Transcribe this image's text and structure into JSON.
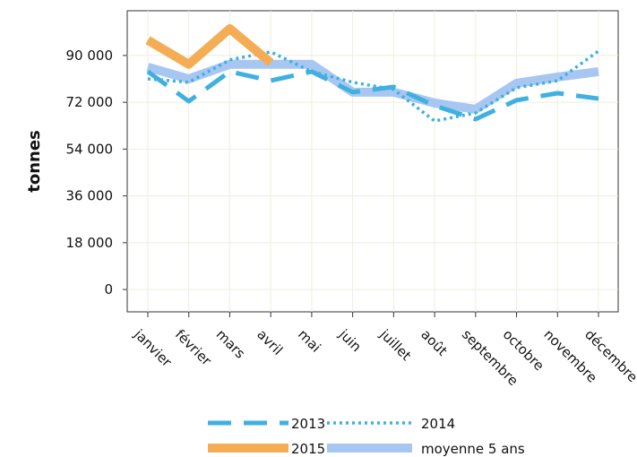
{
  "chart_data": {
    "type": "line",
    "y_label": "tonnes",
    "categories": [
      "janvier",
      "février",
      "mars",
      "avril",
      "mai",
      "juin",
      "juillet",
      "août",
      "septembre",
      "octobre",
      "novembre",
      "décembre"
    ],
    "ylim": [
      -8600,
      107200
    ],
    "yticks": [
      {
        "value": 0,
        "label": "0"
      },
      {
        "value": 18000,
        "label": "18 000"
      },
      {
        "value": 36000,
        "label": "36 000"
      },
      {
        "value": 54000,
        "label": "54 000"
      },
      {
        "value": 72000,
        "label": "72 000"
      },
      {
        "value": 90000,
        "label": "90 000"
      }
    ],
    "grid": true,
    "series": [
      {
        "name": "2013",
        "color": "#3fb0e0",
        "style": "dashed",
        "values": [
          83800,
          72400,
          83800,
          80300,
          83800,
          75900,
          77900,
          70700,
          65500,
          72800,
          75500,
          73400
        ]
      },
      {
        "name": "2014",
        "color": "#3fb0e0",
        "style": "dotted",
        "values": [
          81000,
          79700,
          88300,
          91400,
          83800,
          79700,
          76900,
          64800,
          67900,
          77600,
          80300,
          91700
        ]
      },
      {
        "name": "2015",
        "color": "#f5ad55",
        "style": "thick",
        "values": [
          95900,
          86600,
          100300,
          87200,
          null,
          null,
          null,
          null,
          null,
          null,
          null,
          null
        ]
      },
      {
        "name": "moyenne 5 ans",
        "color": "#a7c7f2",
        "style": "thick",
        "values": [
          85500,
          81000,
          86600,
          86600,
          86600,
          75900,
          75900,
          71700,
          69300,
          79300,
          81700,
          83800
        ]
      }
    ]
  }
}
